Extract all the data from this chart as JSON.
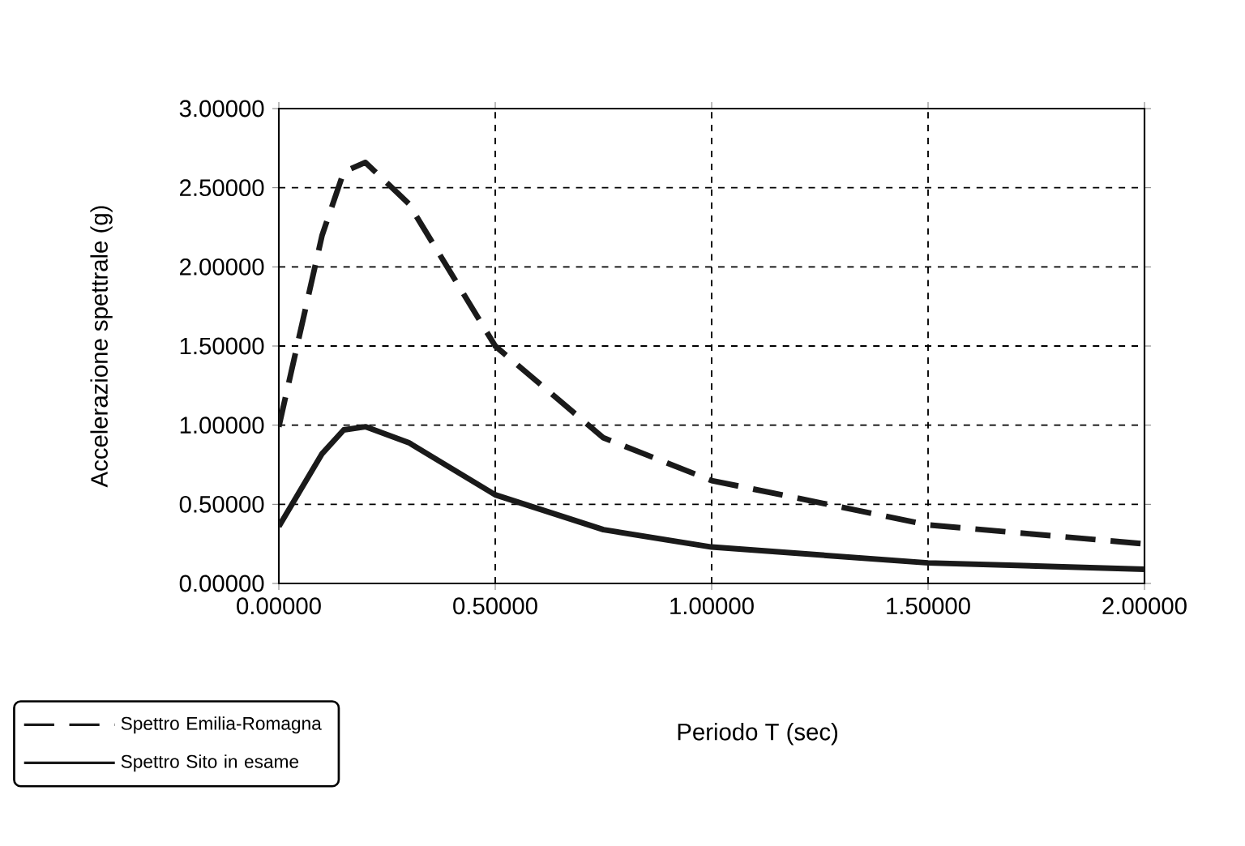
{
  "chart_data": {
    "type": "line",
    "xlabel": "Periodo    T  (sec)",
    "ylabel": "Accelerazione spettrale (g)",
    "x": [
      0,
      0.1,
      0.15,
      0.2,
      0.3,
      0.5,
      0.75,
      1.0,
      1.5,
      2.0
    ],
    "series": [
      {
        "name": "Spettro Emilia-Romagna",
        "color": "#1a1a1a",
        "line_style": "dashed",
        "values": [
          0.99,
          2.2,
          2.6,
          2.66,
          2.4,
          1.5,
          0.92,
          0.65,
          0.37,
          0.25
        ]
      },
      {
        "name": "Spettro Sito in esame",
        "color": "#1a1a1a",
        "line_style": "solid",
        "values": [
          0.36,
          0.82,
          0.97,
          0.99,
          0.89,
          0.56,
          0.34,
          0.23,
          0.13,
          0.09
        ]
      }
    ],
    "xlim": [
      0,
      2
    ],
    "ylim": [
      0,
      3
    ],
    "xticks": [
      {
        "value": 0,
        "label": "0.00000"
      },
      {
        "value": 0.5,
        "label": "0.50000"
      },
      {
        "value": 1,
        "label": "1.00000"
      },
      {
        "value": 1.5,
        "label": "1.50000"
      },
      {
        "value": 2,
        "label": "2.00000"
      }
    ],
    "yticks": [
      {
        "value": 0,
        "label": "0.00000"
      },
      {
        "value": 0.5,
        "label": "0.50000"
      },
      {
        "value": 1,
        "label": "1.00000"
      },
      {
        "value": 1.5,
        "label": "1.50000"
      },
      {
        "value": 2,
        "label": "2.00000"
      },
      {
        "value": 2.5,
        "label": "2.50000"
      },
      {
        "value": 3,
        "label": "3.00000"
      }
    ],
    "grid": true,
    "legend": "bottom left",
    "marker": "none"
  }
}
